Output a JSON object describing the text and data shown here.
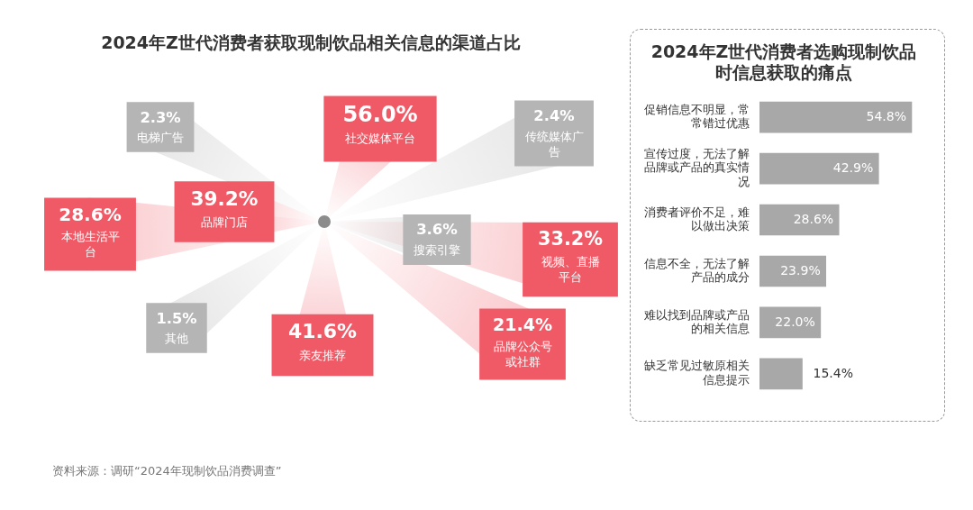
{
  "chart_data": [
    {
      "type": "other",
      "title": "2024年Z世代消费者获取现制饮品相关信息的渠道占比",
      "categories": [
        "社交媒体平台",
        "传统媒体广告",
        "视频、直播平台",
        "品牌公众号或社群",
        "亲友推荐",
        "其他",
        "本地生活平台",
        "品牌门店",
        "搜索引擎",
        "电梯广告"
      ],
      "values": [
        56.0,
        2.4,
        33.2,
        21.4,
        41.6,
        1.5,
        28.6,
        39.2,
        3.6,
        2.3
      ],
      "value_labels": [
        "56.0%",
        "2.4%",
        "33.2%",
        "21.4%",
        "41.6%",
        "1.5%",
        "28.6%",
        "39.2%",
        "3.6%",
        "2.3%"
      ],
      "colors": [
        "#ef5a66",
        "#b5b5b5",
        "#ef5a66",
        "#ef5a66",
        "#ef5a66",
        "#b5b5b5",
        "#ef5a66",
        "#ef5a66",
        "#b5b5b5",
        "#b5b5b5"
      ],
      "annotations": [
        "资料来源：调研“2024年现制饮品消费调查”"
      ]
    },
    {
      "type": "bar",
      "orientation": "horizontal",
      "title": "2024年Z世代消费者选购现制饮品时信息获取的痛点",
      "categories": [
        "促销信息不明显，常常错过优惠",
        "宣传过度，无法了解品牌或产品的真实情况",
        "消费者评价不足，难以做出决策",
        "信息不全，无法了解产品的成分",
        "难以找到品牌或产品的相关信息",
        "缺乏常见过敏原相关信息提示"
      ],
      "values": [
        54.8,
        42.9,
        28.6,
        23.9,
        22.0,
        15.4
      ],
      "value_labels": [
        "54.8%",
        "42.9%",
        "28.6%",
        "23.9%",
        "22.0%",
        "15.4%"
      ],
      "color": "#a8a8a8"
    }
  ]
}
